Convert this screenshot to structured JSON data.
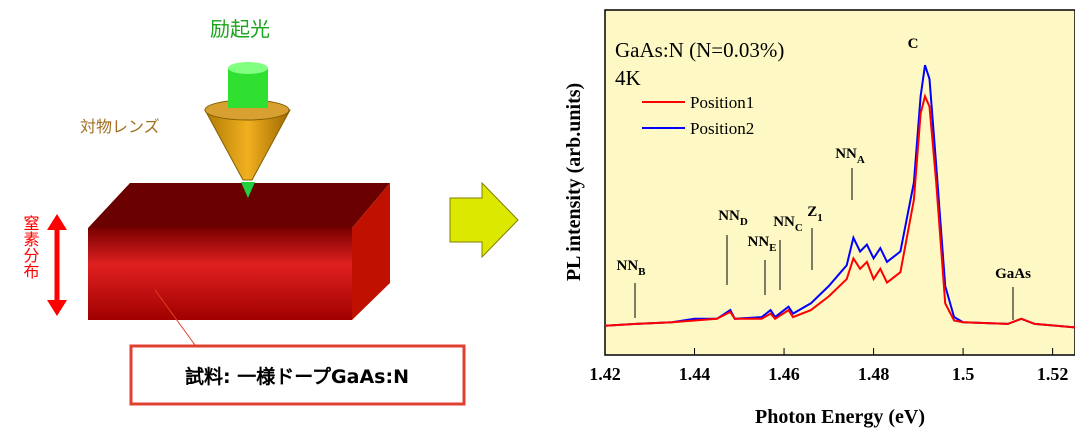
{
  "diagram": {
    "excitation_label": "励起光",
    "lens_label": "対物レンズ",
    "distribution_label": "窒素分布",
    "sample_label": "試料: 一様ドープGaAs:N"
  },
  "chart_data": {
    "type": "line",
    "x_label": "Photon Energy (eV)",
    "y_label": "PL intensity (arb.units)",
    "annotations_text": [
      "GaAs:N (N=0.03%)",
      "4K"
    ],
    "peaks": [
      {
        "text": "NN",
        "sub": "B"
      },
      {
        "text": "NN",
        "sub": "D"
      },
      {
        "text": "NN",
        "sub": "E"
      },
      {
        "text": "NN",
        "sub": "C"
      },
      {
        "text": "Z",
        "sub": "1"
      },
      {
        "text": "NN",
        "sub": "A"
      },
      {
        "text": "C"
      },
      {
        "text": "GaAs"
      }
    ],
    "x": [
      1.42,
      1.427,
      1.435,
      1.44,
      1.445,
      1.448,
      1.449,
      1.455,
      1.457,
      1.458,
      1.461,
      1.462,
      1.466,
      1.47,
      1.474,
      1.4755,
      1.477,
      1.4785,
      1.48,
      1.4815,
      1.483,
      1.486,
      1.489,
      1.4905,
      1.4915,
      1.4925,
      1.494,
      1.496,
      1.498,
      1.5,
      1.51,
      1.513,
      1.516,
      1.525
    ],
    "series": [
      {
        "name": "Position1",
        "color": "#ff0000",
        "values": [
          8.5,
          9,
          9.5,
          10,
          10.5,
          12.5,
          10.5,
          10.5,
          12,
          10.5,
          13,
          11,
          13,
          17,
          22,
          28,
          25,
          27,
          22,
          25,
          21,
          24,
          45,
          70,
          75,
          72,
          50,
          15,
          10,
          9.5,
          9,
          10.5,
          9,
          8
        ]
      },
      {
        "name": "Position2",
        "color": "#0000ff",
        "values": [
          8.5,
          9,
          9.5,
          10.5,
          10.5,
          13,
          10.5,
          11,
          13,
          11,
          14,
          12,
          15,
          20,
          26,
          34,
          30,
          32,
          28,
          31,
          27,
          30,
          50,
          75,
          84,
          80,
          55,
          20,
          11,
          9.5,
          9,
          10.5,
          9,
          8
        ]
      }
    ],
    "xlim": [
      1.42,
      1.525
    ],
    "xticks": [
      1.42,
      1.44,
      1.46,
      1.48,
      1.5,
      {
        "value": 1.52,
        "label": "1.52"
      }
    ],
    "ylim": [
      0,
      100
    ],
    "legend": "upper-left"
  }
}
